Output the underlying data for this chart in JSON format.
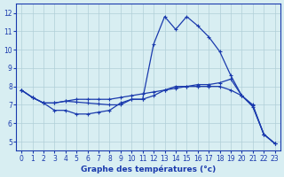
{
  "hours": [
    0,
    1,
    2,
    3,
    4,
    5,
    6,
    7,
    8,
    9,
    10,
    11,
    12,
    13,
    14,
    15,
    16,
    17,
    18,
    19,
    20,
    21,
    22,
    23
  ],
  "line1": [
    7.8,
    7.4,
    7.1,
    6.7,
    6.7,
    6.5,
    6.5,
    6.6,
    6.7,
    7.1,
    7.3,
    7.3,
    10.3,
    11.8,
    11.1,
    11.8,
    11.3,
    10.7,
    9.9,
    8.6,
    7.5,
    7.0,
    5.4,
    4.9
  ],
  "line2": [
    7.8,
    7.4,
    7.1,
    7.1,
    7.2,
    7.3,
    7.3,
    7.3,
    7.3,
    7.4,
    7.5,
    7.6,
    7.7,
    7.8,
    7.9,
    8.0,
    8.1,
    8.1,
    8.2,
    8.4,
    7.5,
    6.95,
    5.4,
    4.9
  ],
  "line3": [
    7.8,
    7.4,
    7.1,
    7.1,
    7.2,
    7.15,
    7.1,
    7.05,
    7.0,
    7.0,
    7.3,
    7.3,
    7.5,
    7.8,
    8.0,
    8.0,
    8.0,
    8.0,
    8.0,
    7.8,
    7.5,
    6.9,
    5.4,
    4.9
  ],
  "line_color": "#1a3aad",
  "bg_color": "#d8eef2",
  "grid_color": "#b0cfd8",
  "xlabel": "Graphe des températures (°c)",
  "ylim": [
    4.5,
    12.5
  ],
  "xlim": [
    -0.5,
    23.5
  ],
  "yticks": [
    5,
    6,
    7,
    8,
    9,
    10,
    11,
    12
  ],
  "xticks": [
    0,
    1,
    2,
    3,
    4,
    5,
    6,
    7,
    8,
    9,
    10,
    11,
    12,
    13,
    14,
    15,
    16,
    17,
    18,
    19,
    20,
    21,
    22,
    23
  ]
}
